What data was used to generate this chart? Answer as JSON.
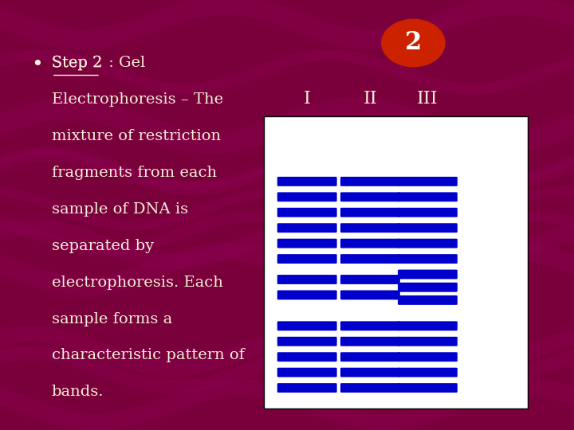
{
  "bg_color": "#7a003c",
  "text_color": "#f5f0d8",
  "title_color": "#f5f0d8",
  "bullet_text": "Step 2 : Gel\nElectrophoresis – The\nmixture of restriction\nfragments from each\nsample of DNA is\nseparated by\nelectrophoresis. Each\nsample forms a\ncharacteristic pattern of\nbands.",
  "step_number": "2",
  "step_circle_color": "#cc2200",
  "lane_labels": [
    "I",
    "II",
    "III"
  ],
  "band_color": "#0000cc",
  "gel_bg": "#ffffff",
  "lane_I_bands": [
    0.88,
    0.82,
    0.76,
    0.7,
    0.64,
    0.58,
    0.5,
    0.44,
    0.32,
    0.26,
    0.2,
    0.14,
    0.08
  ],
  "lane_II_bands": [
    0.88,
    0.82,
    0.76,
    0.7,
    0.64,
    0.58,
    0.5,
    0.44,
    0.32,
    0.26,
    0.2,
    0.14,
    0.08
  ],
  "lane_III_bands": [
    0.88,
    0.82,
    0.76,
    0.7,
    0.64,
    0.58,
    0.52,
    0.47,
    0.42,
    0.32,
    0.26,
    0.2,
    0.14,
    0.08
  ]
}
